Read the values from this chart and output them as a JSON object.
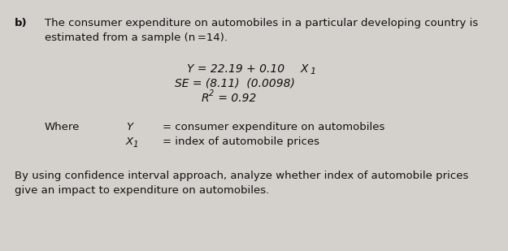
{
  "bg_color": "#d4d0cb",
  "label_b": "b)",
  "line1": "The consumer expenditure on automobiles in a particular developing country is",
  "line2": "estimated from a sample (n =14).",
  "eq_line1_a": "Y",
  "eq_line1_b": " = 22.19 + 0.10",
  "eq_line1_c": "X",
  "eq_line2": "SE = (8.11)  (0.0098)",
  "eq_line3": "R² = 0.92",
  "where_label": "Where",
  "where_Y_var": "Y",
  "where_Y_def": "= consumer expenditure on automobiles",
  "where_X_var": "X",
  "where_X_sub": "1",
  "where_X_def": "= index of automobile prices",
  "conclusion_line1": "By using confidence interval approach, analyze whether index of automobile prices",
  "conclusion_line2": "give an impact to expenditure on automobiles.",
  "font_size_main": 9.5,
  "font_size_eq": 10.0,
  "text_color": "#111111"
}
